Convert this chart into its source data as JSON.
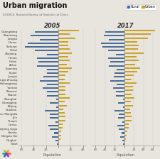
{
  "title": "Urban migration",
  "source": "SOURCE: National Bureau of Statistics of China",
  "year_left": "2005",
  "year_right": "2017",
  "xlabel": "Population",
  "legend": [
    "Rural",
    "Urban"
  ],
  "rural_color": "#4a6b96",
  "urban_color": "#c9a227",
  "background_color": "#e8e4de",
  "top_bar_color": "#1a3f6f",
  "provinces": [
    "Guangdong",
    "Shandong",
    "Jiangsu",
    "Henan",
    "Sichuan",
    "Hebei",
    "Zhejiang",
    "Hunan",
    "Hubei",
    "Anhui",
    "Liaoning",
    "Fujian",
    "Jiangxi",
    "Guangxi Zhuang",
    "Heilongjiang",
    "Yunnan",
    "Shaanxi",
    "Shanxi",
    "Shanghai",
    "Chongqing",
    "Beijing",
    "Guizhou",
    "Inner Mongolia",
    "Jilin",
    "Tianjin",
    "Gansu",
    "Xinjiang Uygu",
    "Hainan",
    "Ningxia Hui",
    "Qinghai",
    "Tibet"
  ],
  "rural_2005": [
    38,
    45,
    30,
    50,
    55,
    38,
    18,
    35,
    32,
    35,
    18,
    18,
    24,
    30,
    18,
    26,
    18,
    18,
    4,
    14,
    4,
    22,
    14,
    14,
    5,
    16,
    14,
    7,
    10,
    5,
    2
  ],
  "urban_2005": [
    34,
    18,
    28,
    16,
    16,
    18,
    22,
    16,
    18,
    14,
    22,
    16,
    12,
    10,
    18,
    12,
    12,
    12,
    18,
    10,
    14,
    8,
    10,
    12,
    12,
    7,
    7,
    5,
    4,
    3,
    1
  ],
  "rural_2017": [
    40,
    42,
    32,
    48,
    45,
    34,
    18,
    34,
    30,
    32,
    16,
    20,
    22,
    30,
    16,
    24,
    18,
    18,
    3,
    13,
    3,
    20,
    12,
    13,
    4,
    14,
    12,
    6,
    8,
    4,
    2
  ],
  "urban_2017": [
    65,
    56,
    50,
    28,
    30,
    29,
    40,
    26,
    30,
    23,
    34,
    28,
    20,
    16,
    26,
    18,
    18,
    16,
    22,
    14,
    18,
    12,
    14,
    16,
    16,
    9,
    9,
    7,
    5,
    4,
    2
  ]
}
